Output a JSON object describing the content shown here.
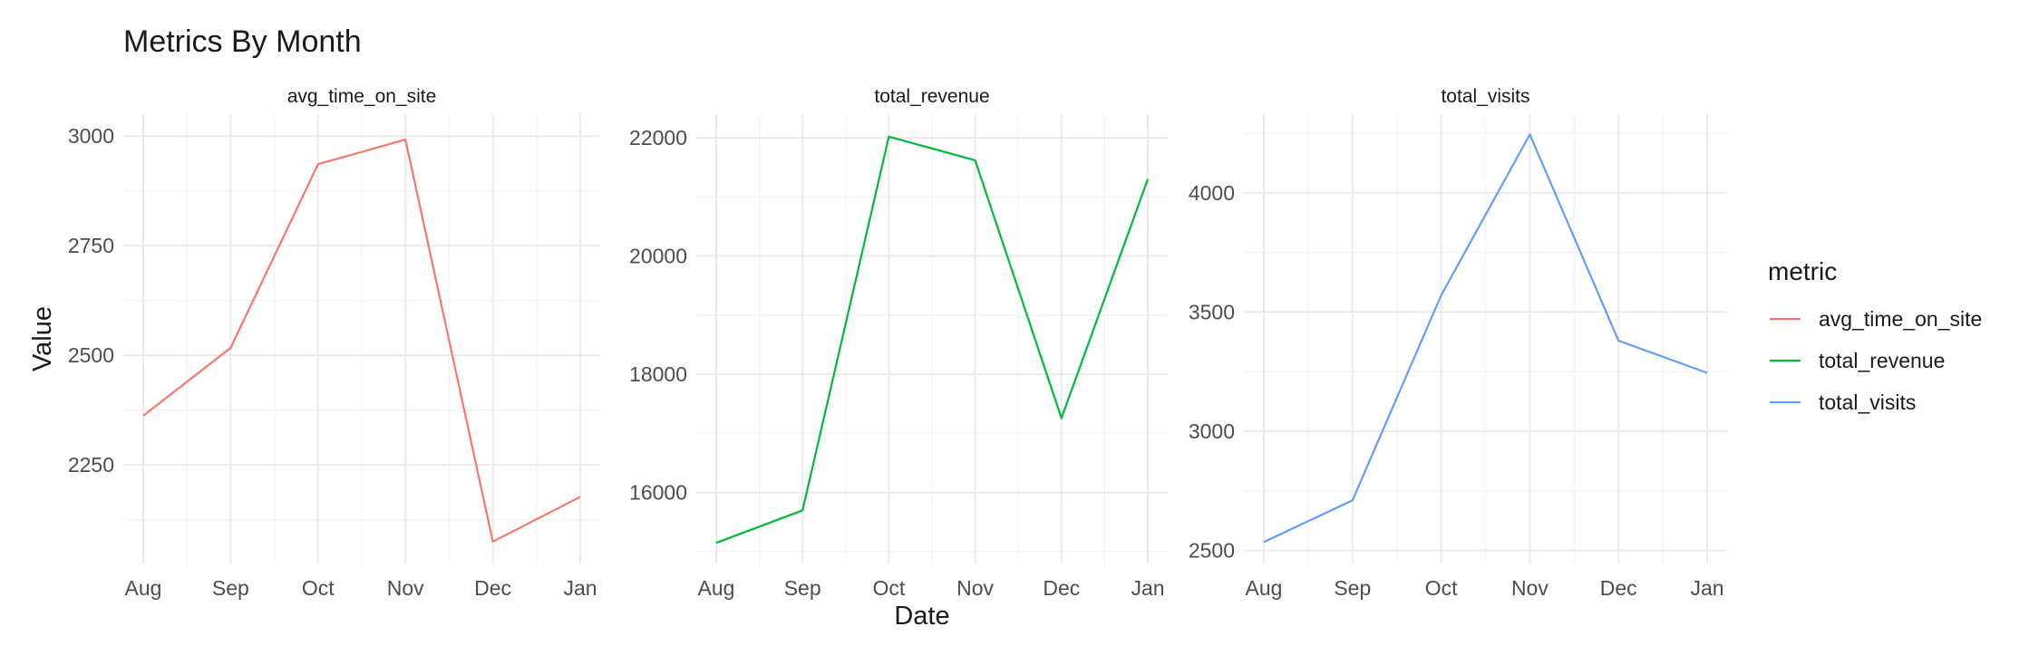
{
  "title": "Metrics By Month",
  "xlabel": "Date",
  "ylabel": "Value",
  "legend": {
    "title": "metric",
    "items": [
      {
        "label": "avg_time_on_site",
        "color": "#F8766D"
      },
      {
        "label": "total_revenue",
        "color": "#00BA38"
      },
      {
        "label": "total_visits",
        "color": "#619CFF"
      }
    ]
  },
  "chart_data": {
    "type": "line",
    "facets": "free_y",
    "categories": [
      "Aug",
      "Sep",
      "Oct",
      "Nov",
      "Dec",
      "Jan"
    ],
    "grid": true,
    "legend_position": "right",
    "panels": [
      {
        "title": "avg_time_on_site",
        "color": "#F8766D",
        "values": [
          2362,
          2517,
          2936,
          2992,
          2075,
          2177
        ],
        "yticks": [
          "2250",
          "2500",
          "2750",
          "3000"
        ],
        "ylim": [
          2025,
          3050
        ]
      },
      {
        "title": "total_revenue",
        "color": "#00BA38",
        "values": [
          15150,
          15700,
          22020,
          21620,
          17260,
          21300
        ],
        "yticks": [
          "16000",
          "18000",
          "20000",
          "22000"
        ],
        "ylim": [
          14800,
          22400
        ]
      },
      {
        "title": "total_visits",
        "color": "#619CFF",
        "values": [
          2535,
          2710,
          3570,
          4245,
          3380,
          3245
        ],
        "yticks": [
          "2500",
          "3000",
          "3500",
          "4000"
        ],
        "ylim": [
          2445,
          4330
        ]
      }
    ]
  }
}
